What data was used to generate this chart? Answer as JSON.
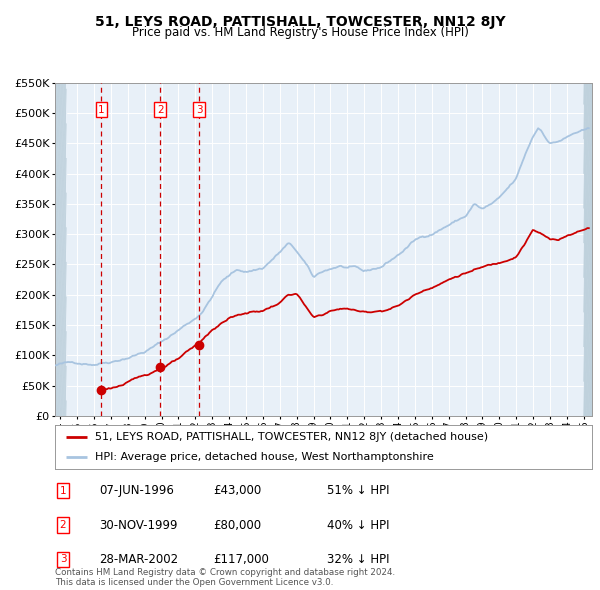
{
  "title": "51, LEYS ROAD, PATTISHALL, TOWCESTER, NN12 8JY",
  "subtitle": "Price paid vs. HM Land Registry's House Price Index (HPI)",
  "hpi_color": "#a8c4e0",
  "price_color": "#cc0000",
  "vline_color": "#cc0000",
  "plot_bg": "#e8f0f8",
  "ylim_max": 550000,
  "yticks": [
    0,
    50000,
    100000,
    150000,
    200000,
    250000,
    300000,
    350000,
    400000,
    450000,
    500000,
    550000
  ],
  "xlim_start": 1993.7,
  "xlim_end": 2025.5,
  "sales": [
    {
      "num": 1,
      "date": "07-JUN-1996",
      "year": 1996.44,
      "price": 43000,
      "pct": "51% ↓ HPI"
    },
    {
      "num": 2,
      "date": "30-NOV-1999",
      "year": 1999.92,
      "price": 80000,
      "pct": "40% ↓ HPI"
    },
    {
      "num": 3,
      "date": "28-MAR-2002",
      "year": 2002.23,
      "price": 117000,
      "pct": "32% ↓ HPI"
    }
  ],
  "legend_line1": "51, LEYS ROAD, PATTISHALL, TOWCESTER, NN12 8JY (detached house)",
  "legend_line2": "HPI: Average price, detached house, West Northamptonshire",
  "footnote": "Contains HM Land Registry data © Crown copyright and database right 2024.\nThis data is licensed under the Open Government Licence v3.0.",
  "xticks": [
    1994,
    1995,
    1996,
    1997,
    1998,
    1999,
    2000,
    2001,
    2002,
    2003,
    2004,
    2005,
    2006,
    2007,
    2008,
    2009,
    2010,
    2011,
    2012,
    2013,
    2014,
    2015,
    2016,
    2017,
    2018,
    2019,
    2020,
    2021,
    2022,
    2023,
    2024,
    2025
  ]
}
